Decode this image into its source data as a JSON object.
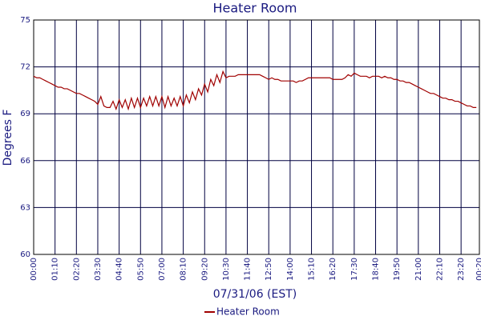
{
  "chart_data": {
    "type": "line",
    "title": "Heater Room",
    "x_label": "07/31/06 (EST)",
    "y_label": "Degrees F",
    "x": [
      0,
      10,
      20,
      30,
      40,
      50,
      60,
      70,
      80,
      90,
      100,
      110,
      120,
      130,
      140,
      150,
      160,
      170,
      180,
      190,
      200,
      210,
      220,
      230,
      240,
      250,
      260,
      270,
      280,
      290,
      300,
      310,
      320,
      330,
      340,
      350,
      360,
      370,
      380,
      390,
      400,
      410,
      420,
      430,
      440,
      450,
      460,
      470,
      480,
      490,
      500,
      510,
      520,
      530,
      540,
      550,
      560,
      570,
      580,
      590,
      600,
      610,
      620,
      630,
      640,
      650,
      660,
      670,
      680,
      690,
      700,
      710,
      720,
      730,
      740,
      750,
      760,
      770,
      780,
      790,
      800,
      810,
      820,
      830,
      840,
      850,
      860,
      870,
      880,
      890,
      900,
      910,
      920,
      930,
      940,
      950,
      960,
      970,
      980,
      990,
      1000,
      1010,
      1020,
      1030,
      1040,
      1050,
      1060,
      1070,
      1080,
      1090,
      1100,
      1110,
      1120,
      1130,
      1140,
      1150,
      1160,
      1170,
      1180,
      1190,
      1200,
      1210,
      1220,
      1230,
      1240,
      1250,
      1260,
      1270,
      1280,
      1290,
      1300,
      1310,
      1320,
      1330,
      1340,
      1350,
      1360,
      1370,
      1380,
      1390,
      1400,
      1410,
      1420,
      1430,
      1440,
      1450
    ],
    "series": [
      {
        "name": "Heater Room",
        "color": "#a00000",
        "values": [
          71.4,
          71.3,
          71.3,
          71.2,
          71.1,
          71.0,
          70.9,
          70.8,
          70.7,
          70.7,
          70.6,
          70.6,
          70.5,
          70.4,
          70.3,
          70.3,
          70.2,
          70.1,
          70.0,
          69.9,
          69.8,
          69.6,
          70.1,
          69.5,
          69.4,
          69.4,
          69.8,
          69.3,
          69.9,
          69.4,
          69.9,
          69.3,
          70.0,
          69.4,
          70.0,
          69.4,
          70.0,
          69.5,
          70.1,
          69.5,
          70.1,
          69.5,
          70.1,
          69.4,
          70.1,
          69.5,
          70.0,
          69.5,
          70.1,
          69.5,
          70.2,
          69.7,
          70.4,
          69.9,
          70.6,
          70.2,
          70.9,
          70.4,
          71.2,
          70.8,
          71.5,
          71.0,
          71.7,
          71.3,
          71.4,
          71.4,
          71.4,
          71.5,
          71.5,
          71.5,
          71.5,
          71.5,
          71.5,
          71.5,
          71.5,
          71.4,
          71.3,
          71.2,
          71.3,
          71.2,
          71.2,
          71.1,
          71.1,
          71.1,
          71.1,
          71.1,
          71.0,
          71.1,
          71.1,
          71.2,
          71.3,
          71.3,
          71.3,
          71.3,
          71.3,
          71.3,
          71.3,
          71.3,
          71.2,
          71.2,
          71.2,
          71.2,
          71.3,
          71.5,
          71.4,
          71.6,
          71.5,
          71.4,
          71.4,
          71.4,
          71.3,
          71.4,
          71.4,
          71.4,
          71.3,
          71.4,
          71.3,
          71.3,
          71.2,
          71.2,
          71.1,
          71.1,
          71.0,
          71.0,
          70.9,
          70.8,
          70.7,
          70.6,
          70.5,
          70.4,
          70.3,
          70.3,
          70.2,
          70.1,
          70.0,
          70.0,
          69.9,
          69.9,
          69.8,
          69.8,
          69.7,
          69.6,
          69.5,
          69.5,
          69.4,
          69.4
        ]
      }
    ],
    "xlim": [
      0,
      1460
    ],
    "xticks": [
      {
        "value": 0,
        "label": "00:00"
      },
      {
        "value": 70,
        "label": "01:10"
      },
      {
        "value": 140,
        "label": "02:20"
      },
      {
        "value": 210,
        "label": "03:30"
      },
      {
        "value": 280,
        "label": "04:40"
      },
      {
        "value": 350,
        "label": "05:50"
      },
      {
        "value": 420,
        "label": "07:00"
      },
      {
        "value": 490,
        "label": "08:10"
      },
      {
        "value": 560,
        "label": "09:20"
      },
      {
        "value": 630,
        "label": "10:30"
      },
      {
        "value": 700,
        "label": "11:40"
      },
      {
        "value": 770,
        "label": "12:50"
      },
      {
        "value": 840,
        "label": "14:00"
      },
      {
        "value": 910,
        "label": "15:10"
      },
      {
        "value": 980,
        "label": "16:20"
      },
      {
        "value": 1050,
        "label": "17:30"
      },
      {
        "value": 1120,
        "label": "18:40"
      },
      {
        "value": 1190,
        "label": "19:50"
      },
      {
        "value": 1260,
        "label": "21:00"
      },
      {
        "value": 1330,
        "label": "22:10"
      },
      {
        "value": 1400,
        "label": "23:20"
      },
      {
        "value": 1460,
        "label": "00:20"
      }
    ],
    "ylim": [
      60,
      75
    ],
    "yticks": [
      60,
      63,
      66,
      69,
      72,
      75
    ],
    "grid": true
  }
}
